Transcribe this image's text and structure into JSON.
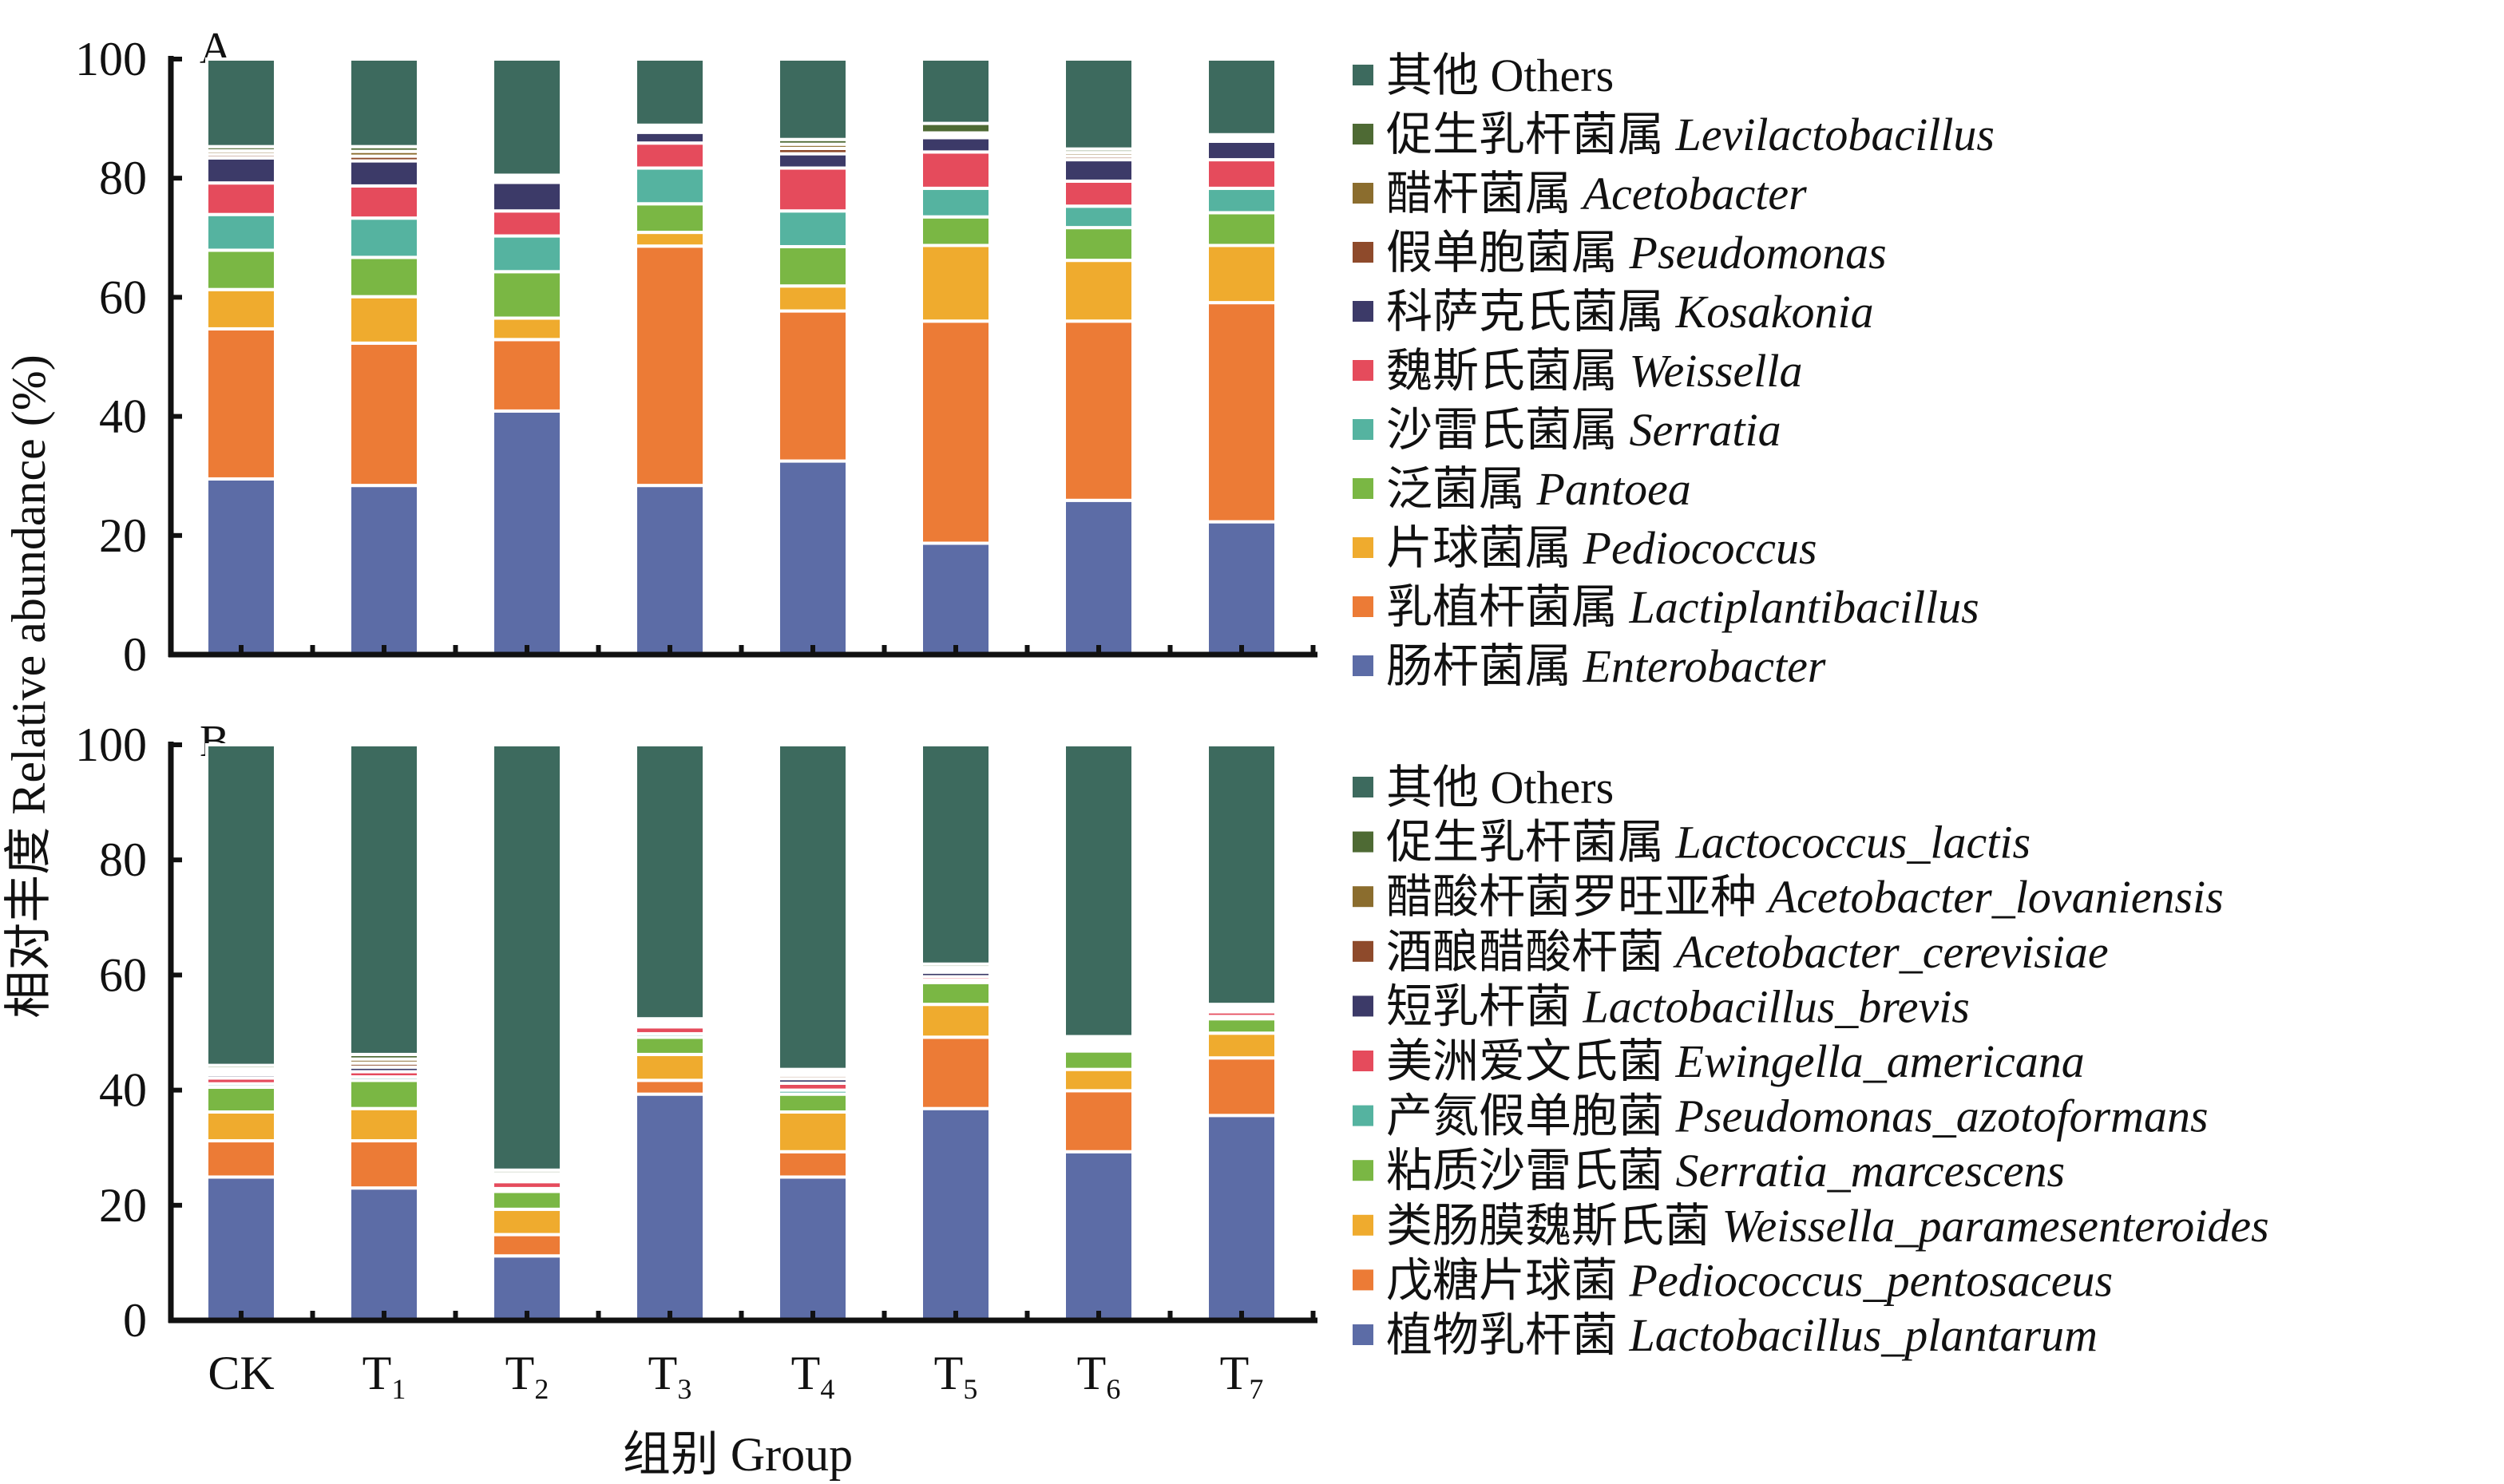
{
  "chart_data": [
    {
      "type": "bar",
      "stacked": true,
      "panel_label": "A",
      "ylabel": "相对丰度 Relative abundance (%)",
      "xlabel": "组别 Group",
      "ylim": [
        0,
        100
      ],
      "yticks": [
        0,
        20,
        40,
        60,
        80,
        100
      ],
      "categories": [
        {
          "main": "CK",
          "sub": ""
        },
        {
          "main": "T",
          "sub": "1"
        },
        {
          "main": "T",
          "sub": "2"
        },
        {
          "main": "T",
          "sub": "3"
        },
        {
          "main": "T",
          "sub": "4"
        },
        {
          "main": "T",
          "sub": "5"
        },
        {
          "main": "T",
          "sub": "6"
        },
        {
          "main": "T",
          "sub": "7"
        }
      ],
      "legend_position": "right",
      "series": [
        {
          "cn": "肠杆菌属",
          "latin": "Enterobacter",
          "italic": true,
          "color": "#5c6ca6",
          "values": [
            29.5,
            28.4,
            40.9,
            28.4,
            32.5,
            18.7,
            25.9,
            22.3
          ]
        },
        {
          "cn": "乳植杆菌属",
          "latin": "Lactiplantibacillus",
          "italic": true,
          "color": "#ec7b36",
          "values": [
            25.2,
            23.9,
            12.0,
            40.2,
            25.2,
            37.3,
            30.1,
            36.8
          ]
        },
        {
          "cn": "片球菌属",
          "latin": "Pediococcus",
          "italic": true,
          "color": "#efab2e",
          "values": [
            6.6,
            7.8,
            3.6,
            2.3,
            4.2,
            12.7,
            10.2,
            9.6
          ]
        },
        {
          "cn": "泛菌属",
          "latin": "Pantoea",
          "italic": true,
          "color": "#7ab744",
          "values": [
            6.6,
            6.6,
            7.8,
            4.8,
            6.6,
            4.8,
            5.5,
            5.5
          ]
        },
        {
          "cn": "沙雷氏菌属",
          "latin": "Serratia",
          "italic": true,
          "color": "#55b3a0",
          "values": [
            6.0,
            6.6,
            6.0,
            6.0,
            6.0,
            4.8,
            3.6,
            4.1
          ]
        },
        {
          "cn": "魏斯氏菌属",
          "latin": "Weissella",
          "italic": true,
          "color": "#e54b5c",
          "values": [
            5.3,
            5.4,
            4.2,
            4.2,
            7.2,
            6.1,
            4.2,
            4.8
          ]
        },
        {
          "cn": "科萨克氏菌属",
          "latin": "Kosakonia",
          "italic": true,
          "color": "#3c3a68",
          "values": [
            4.2,
            4.2,
            4.8,
            1.8,
            2.4,
            2.4,
            3.6,
            3.1
          ]
        },
        {
          "cn": "假单胞菌属",
          "latin": "Pseudomonas",
          "italic": true,
          "color": "#8e4a2b",
          "values": [
            0.6,
            0.8,
            0.4,
            0.4,
            0.9,
            0.4,
            0.6,
            0.4
          ]
        },
        {
          "cn": "醋杆菌属",
          "latin": "Acetobacter",
          "italic": true,
          "color": "#8b6d2e",
          "values": [
            0.6,
            0.8,
            0.4,
            0.4,
            0.7,
            0.4,
            0.6,
            0.4
          ]
        },
        {
          "cn": "促生乳杆菌属",
          "latin": "Levilactobacillus",
          "italic": true,
          "color": "#4e6a34",
          "values": [
            0.7,
            0.8,
            0.4,
            0.4,
            0.8,
            1.6,
            0.6,
            0.3
          ]
        },
        {
          "cn": "其他",
          "latin": "Others",
          "italic": false,
          "color": "#3d6a5e",
          "values": [
            14.7,
            14.7,
            19.5,
            11.1,
            13.5,
            10.8,
            15.1,
            12.7
          ]
        }
      ]
    },
    {
      "type": "bar",
      "stacked": true,
      "panel_label": "B",
      "ylim": [
        0,
        100
      ],
      "yticks": [
        0,
        20,
        40,
        60,
        80,
        100
      ],
      "legend_position": "right",
      "series": [
        {
          "cn": "植物乳杆菌",
          "latin": "Lactobacillus_plantarum",
          "italic": true,
          "color": "#5c6ca6",
          "values": [
            24.9,
            23.0,
            11.2,
            39.3,
            24.9,
            36.8,
            29.3,
            35.6
          ]
        },
        {
          "cn": "戊糖片球菌",
          "latin": "Pediococcus_pentosaceus",
          "italic": true,
          "color": "#ec7b36",
          "values": [
            6.3,
            8.2,
            3.7,
            2.4,
            4.4,
            12.4,
            10.6,
            10.0
          ]
        },
        {
          "cn": "类肠膜魏斯氏菌",
          "latin": "Weissella_paramesenteroides",
          "italic": true,
          "color": "#efab2e",
          "values": [
            5.0,
            5.6,
            4.4,
            4.5,
            6.9,
            5.7,
            3.7,
            4.3
          ]
        },
        {
          "cn": "粘质沙雷氏菌",
          "latin": "Serratia_marcescens",
          "italic": true,
          "color": "#7ab744",
          "values": [
            4.3,
            4.9,
            3.1,
            3.0,
            3.1,
            3.8,
            3.2,
            2.5
          ]
        },
        {
          "cn": "产氮假单胞菌",
          "latin": "Pseudomonas_azotoformans",
          "italic": true,
          "color": "#55b3a0",
          "values": [
            0.6,
            0.6,
            0.5,
            0.6,
            0.7,
            0.4,
            0.5,
            0.4
          ]
        },
        {
          "cn": "美洲爱文氏菌",
          "latin": "Ewingella_americana",
          "italic": true,
          "color": "#e54b5c",
          "values": [
            1.0,
            0.9,
            1.2,
            1.2,
            1.2,
            0.6,
            0.5,
            0.8
          ]
        },
        {
          "cn": "短乳杆菌",
          "latin": "Lactobacillus_brevis",
          "italic": true,
          "color": "#3c3a68",
          "values": [
            0.6,
            0.8,
            0.5,
            0.5,
            0.8,
            0.8,
            0.5,
            0.4
          ]
        },
        {
          "cn": "酒酿醋酸杆菌",
          "latin": "Acetobacter_cerevisiae",
          "italic": true,
          "color": "#8e4a2b",
          "values": [
            0.5,
            0.7,
            0.5,
            0.5,
            0.6,
            0.4,
            0.4,
            0.3
          ]
        },
        {
          "cn": "醋酸杆菌罗旺亚种",
          "latin": "Acetobacter_lovaniensis",
          "italic": true,
          "color": "#8b6d2e",
          "values": [
            0.5,
            0.7,
            0.4,
            0.4,
            0.5,
            0.4,
            0.3,
            0.3
          ]
        },
        {
          "cn": "促生乳杆菌属",
          "latin": "Lactococcus_lactis",
          "italic": true,
          "color": "#4e6a34",
          "values": [
            0.6,
            0.8,
            0.6,
            0.0,
            0.5,
            0.6,
            0.3,
            0.3
          ]
        },
        {
          "cn": "其他",
          "latin": "Others",
          "italic": false,
          "color": "#3d6a5e",
          "values": [
            55.7,
            53.8,
            73.9,
            47.6,
            56.4,
            38.1,
            50.7,
            45.1
          ]
        }
      ]
    }
  ]
}
